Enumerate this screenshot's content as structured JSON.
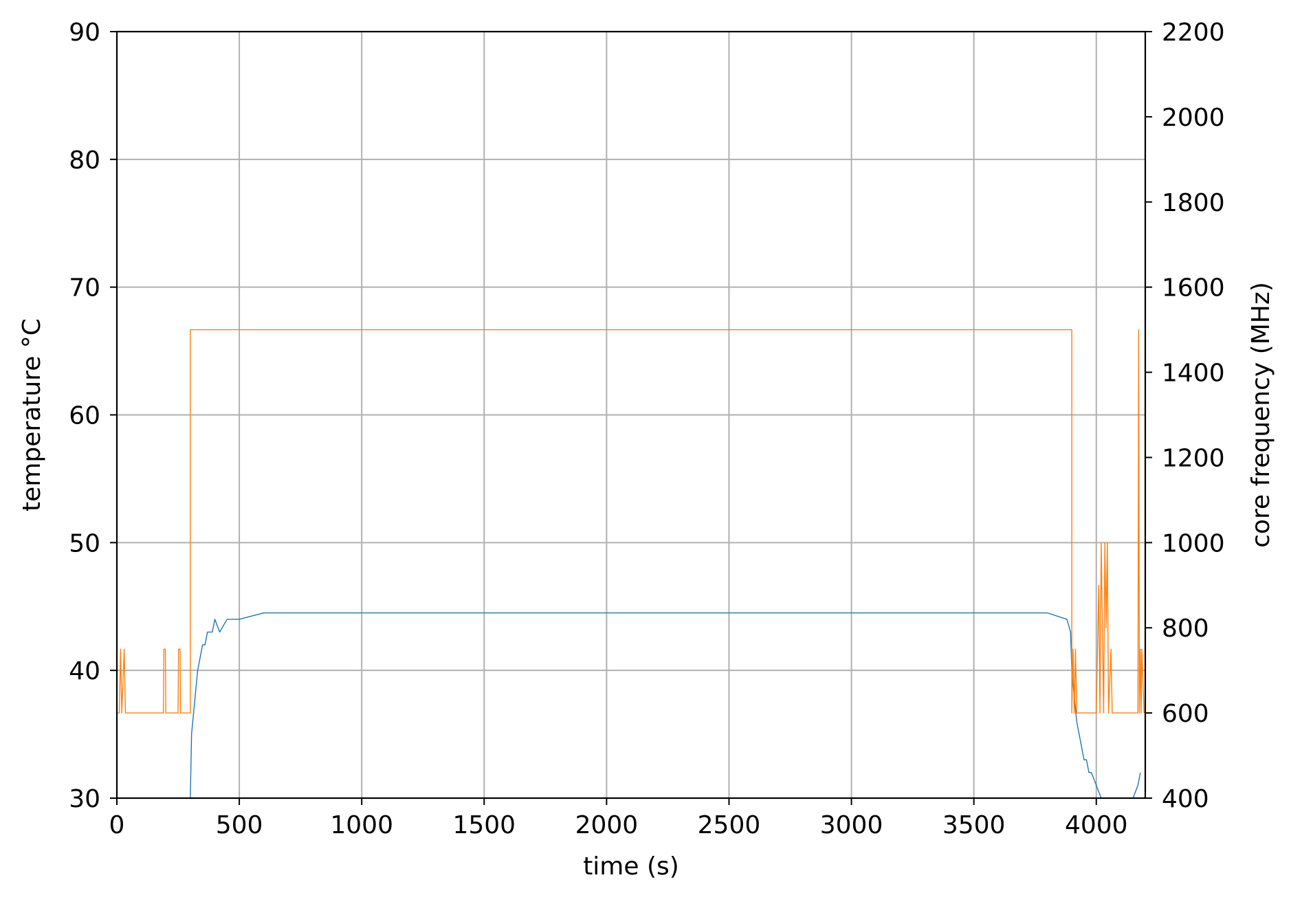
{
  "chart_data": {
    "type": "line",
    "xlabel": "time (s)",
    "ylabel": "temperature °C",
    "y2label": "core frequency (MHz)",
    "xlim": [
      0,
      4200
    ],
    "ylim": [
      30,
      90
    ],
    "y2lim": [
      400,
      2200
    ],
    "xticks": [
      0,
      500,
      1000,
      1500,
      2000,
      2500,
      3000,
      3500,
      4000
    ],
    "yticks": [
      30,
      40,
      50,
      60,
      70,
      80,
      90
    ],
    "y2ticks": [
      400,
      600,
      800,
      1000,
      1200,
      1400,
      1600,
      1800,
      2000,
      2200
    ],
    "grid": true,
    "series": [
      {
        "axis": "left",
        "color": "#1f77b4",
        "x": [
          300,
          305,
          310,
          320,
          330,
          340,
          350,
          360,
          370,
          380,
          390,
          400,
          420,
          450,
          480,
          500,
          600,
          700,
          800,
          900,
          1000,
          1200,
          1400,
          1600,
          1800,
          2000,
          2200,
          2400,
          2600,
          2800,
          3000,
          3200,
          3400,
          3600,
          3800,
          3880,
          3895,
          3900,
          3910,
          3920,
          3930,
          3940,
          3950,
          3960,
          3970,
          3980,
          4000,
          4020,
          4060,
          4080,
          4100,
          4120,
          4150,
          4170,
          4180
        ],
        "y": [
          30,
          35,
          36,
          38,
          40,
          41,
          42,
          42,
          43,
          43,
          43,
          44,
          43,
          44,
          44,
          44,
          44.5,
          44.5,
          44.5,
          44.5,
          44.5,
          44.5,
          44.5,
          44.5,
          44.5,
          44.5,
          44.5,
          44.5,
          44.5,
          44.5,
          44.5,
          44.5,
          44.5,
          44.5,
          44.5,
          44,
          43,
          40,
          38,
          36,
          35,
          34,
          33,
          33,
          32,
          32,
          31,
          30,
          29,
          29,
          29,
          30,
          30,
          31,
          32
        ]
      },
      {
        "axis": "right",
        "color": "#ff7f0e",
        "x": [
          0,
          10,
          15,
          20,
          30,
          35,
          45,
          190,
          192,
          198,
          200,
          250,
          252,
          258,
          260,
          300,
          300,
          3900,
          3900,
          3905,
          3910,
          3915,
          3920,
          4000,
          4010,
          4015,
          4020,
          4030,
          4035,
          4040,
          4045,
          4050,
          4060,
          4065,
          4070,
          4170,
          4173,
          4176,
          4180,
          4183,
          4186,
          4195
        ],
        "y": [
          600,
          600,
          750,
          600,
          750,
          600,
          600,
          600,
          750,
          750,
          600,
          600,
          750,
          750,
          600,
          600,
          1500,
          1500,
          600,
          750,
          600,
          750,
          600,
          600,
          900,
          600,
          1000,
          600,
          1000,
          800,
          1000,
          600,
          750,
          600,
          600,
          600,
          1500,
          600,
          750,
          600,
          750,
          600
        ]
      }
    ]
  }
}
